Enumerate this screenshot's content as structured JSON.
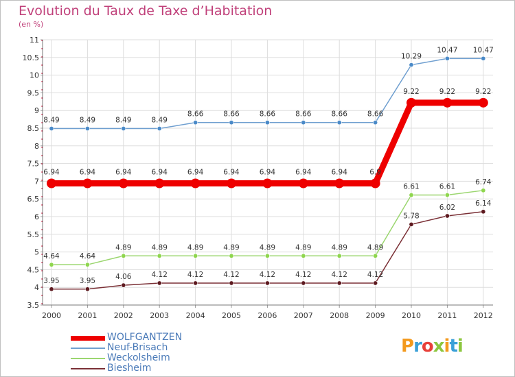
{
  "title": "Evolution du Taux de Taxe d’Habitation",
  "subtitle": "(en %)",
  "logo_text": "Proxiti",
  "chart_data": {
    "type": "line",
    "title": "Evolution du Taux de Taxe d’Habitation",
    "ylabel": "(en %)",
    "x": [
      "2000",
      "2001",
      "2002",
      "2003",
      "2004",
      "2005",
      "2006",
      "2007",
      "2008",
      "2009",
      "2010",
      "2011",
      "2012"
    ],
    "ylim": [
      3.5,
      11
    ],
    "yticks": [
      "3.5",
      "4",
      "4.5",
      "5",
      "5.5",
      "6",
      "6.5",
      "7",
      "7.5",
      "8",
      "8.5",
      "9",
      "9.5",
      "10",
      "10.5",
      "11"
    ],
    "grid": true,
    "legend_position": "bottom-left",
    "series": [
      {
        "name": "Neuf-Brisach",
        "color": "#6f9fd0",
        "marker": "#4a8ac8",
        "values": [
          8.49,
          8.49,
          8.49,
          8.49,
          8.66,
          8.66,
          8.66,
          8.66,
          8.66,
          8.66,
          10.29,
          10.47,
          10.47
        ],
        "labels": [
          "8.49",
          "8.49",
          "8.49",
          "8.49",
          "8.66",
          "8.66",
          "8.66",
          "8.66",
          "8.66",
          "8.66",
          "10.29",
          "10.47",
          "10.47"
        ]
      },
      {
        "name": "Weckolsheim",
        "color": "#9bd66f",
        "marker": "#8fd64e",
        "values": [
          4.64,
          4.64,
          4.89,
          4.89,
          4.89,
          4.89,
          4.89,
          4.89,
          4.89,
          4.89,
          6.61,
          6.61,
          6.74
        ],
        "labels": [
          "4.64",
          "4.64",
          "4.89",
          "4.89",
          "4.89",
          "4.89",
          "4.89",
          "4.89",
          "4.89",
          "4.89",
          "6.61",
          "6.61",
          "6.74"
        ]
      },
      {
        "name": "Biesheim",
        "color": "#7a2f35",
        "marker": "#5e1a20",
        "values": [
          3.95,
          3.95,
          4.06,
          4.12,
          4.12,
          4.12,
          4.12,
          4.12,
          4.12,
          4.12,
          5.78,
          6.02,
          6.14
        ],
        "labels": [
          "3.95",
          "3.95",
          "4.06",
          "4.12",
          "4.12",
          "4.12",
          "4.12",
          "4.12",
          "4.12",
          "4.12",
          "5.78",
          "6.02",
          "6.14"
        ]
      },
      {
        "name": "WOLFGANTZEN",
        "color": "#ee0000",
        "marker": "#ee0000",
        "bold": true,
        "values": [
          6.94,
          6.94,
          6.94,
          6.94,
          6.94,
          6.94,
          6.94,
          6.94,
          6.94,
          6.94,
          9.22,
          9.22,
          9.22
        ],
        "labels": [
          "6.94",
          "6.94",
          "6.94",
          "6.94",
          "6.94",
          "6.94",
          "6.94",
          "6.94",
          "6.94",
          "6.9",
          "9.22",
          "9.22",
          "9.22"
        ]
      }
    ],
    "legend_order": [
      "WOLFGANTZEN",
      "Neuf-Brisach",
      "Weckolsheim",
      "Biesheim"
    ]
  },
  "colors": {
    "title": "#c0407a",
    "axis_text": "#333333",
    "grid": "#dddddd",
    "legend_text": "#4a7ab8"
  }
}
